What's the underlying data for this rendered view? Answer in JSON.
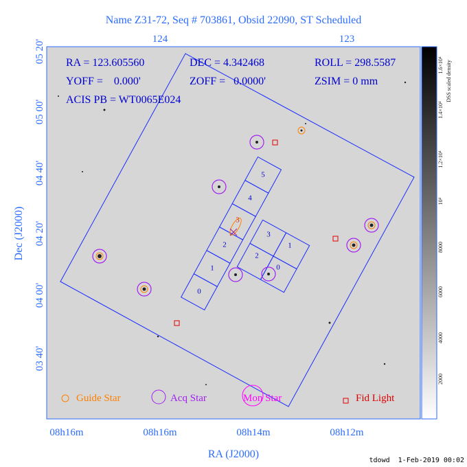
{
  "title": "Name Z31-72, Seq # 703861, Obsid 22090, ST Scheduled",
  "info": {
    "ra": "RA = 123.605560",
    "dec": "DEC = 4.342468",
    "roll": "ROLL = 298.5587",
    "yoff": "YOFF =    0.000'",
    "zoff": "ZOFF =   0.0000'",
    "zsim": "ZSIM = 0 mm",
    "acis": "ACIS PB = WT0065E024"
  },
  "axes": {
    "top_ticks": [
      "124",
      "123"
    ],
    "left_ticks": [
      "05 20'",
      "05 00'",
      "04 40'",
      "04 20'",
      "04 00'",
      "03 40'"
    ],
    "bottom_ticks": [
      "08h16m",
      "08h16m",
      "08h14m",
      "08h12m"
    ],
    "x_label": "RA (J2000)",
    "y_label": "Dec (J2000)"
  },
  "chips": {
    "s": [
      "0",
      "1",
      "2",
      "3",
      "4",
      "5"
    ],
    "i": [
      "3",
      "1",
      "2",
      "0"
    ]
  },
  "legend": [
    "Guide Star",
    "Acq Star",
    "Mon Star",
    "Fid Light"
  ],
  "colorbar": {
    "label": "DSS scaled density",
    "ticks": [
      "2000",
      "4000",
      "6000",
      "8000",
      "10⁴",
      "1.2×10⁴",
      "1.4×10⁴",
      "1.6×10⁴"
    ]
  },
  "footer": "tdowd  1-Feb-2019 00:02"
}
